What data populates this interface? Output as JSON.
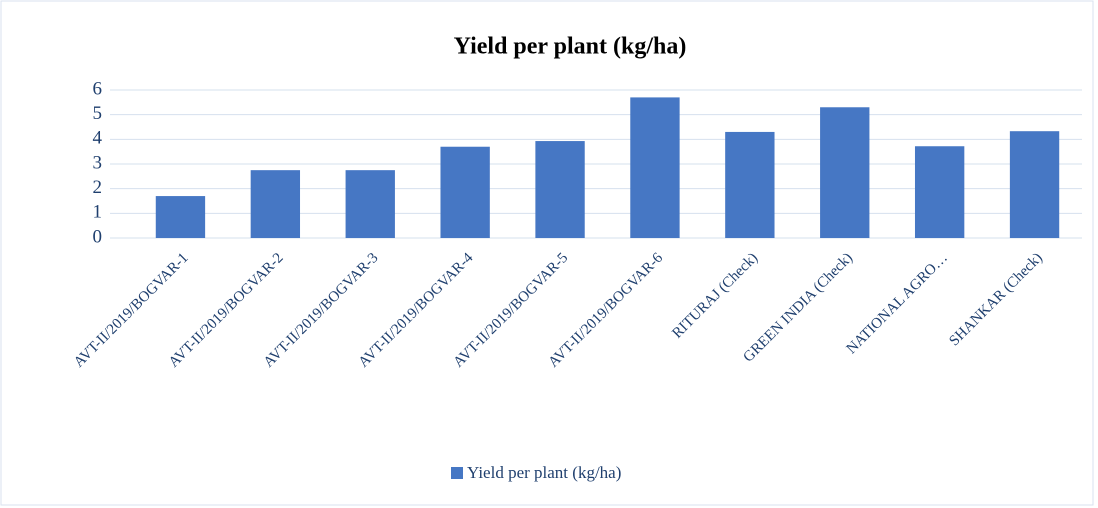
{
  "chart_data": {
    "type": "bar",
    "title": "Yield per plant (kg/ha)",
    "categories": [
      "AVT-II/2019/BOGVAR-1",
      "AVT-II/2019/BOGVAR-2",
      "AVT-II/2019/BOGVAR-3",
      "AVT-II/2019/BOGVAR-4",
      "AVT-II/2019/BOGVAR-5",
      "AVT-II/2019/BOGVAR-6",
      "RITURAJ (Check)",
      "GREEN INDIA (Check)",
      "NATIONAL AGRO…",
      "SHANKAR (Check)"
    ],
    "series": [
      {
        "name": "Yield per plant (kg/ha)",
        "color": "#4677c4",
        "values": [
          1.7,
          2.75,
          2.75,
          3.7,
          3.93,
          5.7,
          4.3,
          5.3,
          3.72,
          4.33
        ]
      }
    ],
    "ylim": [
      0,
      6
    ],
    "yticks": [
      0,
      1,
      2,
      3,
      4,
      5,
      6
    ],
    "grid": true,
    "legend": "bottom"
  }
}
